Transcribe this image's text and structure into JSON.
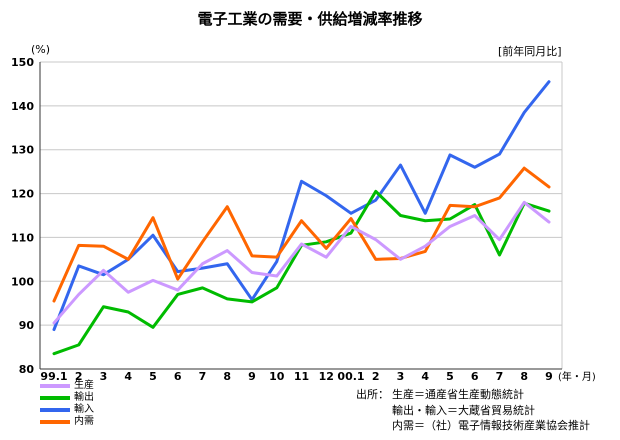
{
  "title": "電子工業の需要・供給増減率推移",
  "unit_label": "(%)",
  "note_label": "[前年同月比]",
  "source": {
    "label": "出所：",
    "lines": [
      "生産＝通産省生産動態統計",
      "輸出・輸入＝大蔵省貿易統計",
      "内需＝（社）電子情報技術産業協会推計"
    ]
  },
  "colors": {
    "生産": "#cc99ff",
    "輸出": "#00bb00",
    "輸入": "#3366ee",
    "内需": "#ff6600"
  },
  "chart_data": {
    "type": "line",
    "x_unit_label": "(年・月)",
    "categories": [
      "99.1",
      "2",
      "3",
      "4",
      "5",
      "6",
      "7",
      "8",
      "9",
      "10",
      "11",
      "12",
      "00.1",
      "2",
      "3",
      "4",
      "5",
      "6",
      "7",
      "8",
      "9"
    ],
    "ylim": [
      80,
      150
    ],
    "yticks": [
      80,
      90,
      100,
      110,
      120,
      130,
      140,
      150
    ],
    "grid": true,
    "legend_position": "bottom-left",
    "series": [
      {
        "name": "生産",
        "color": "#cc99ff",
        "values": [
          90.5,
          97,
          102.5,
          97.5,
          100.2,
          98,
          104,
          107,
          102,
          101.2,
          108.5,
          105.5,
          112.5,
          109.5,
          105,
          108,
          112.5,
          115,
          109.5,
          118,
          113.5
        ]
      },
      {
        "name": "輸出",
        "color": "#00bb00",
        "values": [
          83.5,
          85.5,
          94.2,
          93,
          89.5,
          97,
          98.5,
          96,
          95.3,
          98.5,
          108.2,
          109,
          111,
          120.5,
          115,
          113.8,
          114.2,
          117.5,
          106,
          117.8,
          116
        ]
      },
      {
        "name": "輸入",
        "color": "#3366ee",
        "values": [
          89,
          103.5,
          101.5,
          105,
          110.5,
          102.2,
          103,
          104,
          95.8,
          104.5,
          122.8,
          119.5,
          115.5,
          118.5,
          126.5,
          115.5,
          128.8,
          126,
          129,
          138.5,
          145.5
        ]
      },
      {
        "name": "内需",
        "color": "#ff6600",
        "values": [
          95.5,
          108.2,
          108,
          105,
          114.5,
          100.5,
          109,
          117,
          105.8,
          105.5,
          113.8,
          107.5,
          114.3,
          105,
          105.2,
          106.8,
          117.3,
          117,
          119,
          125.8,
          121.5
        ]
      }
    ]
  }
}
